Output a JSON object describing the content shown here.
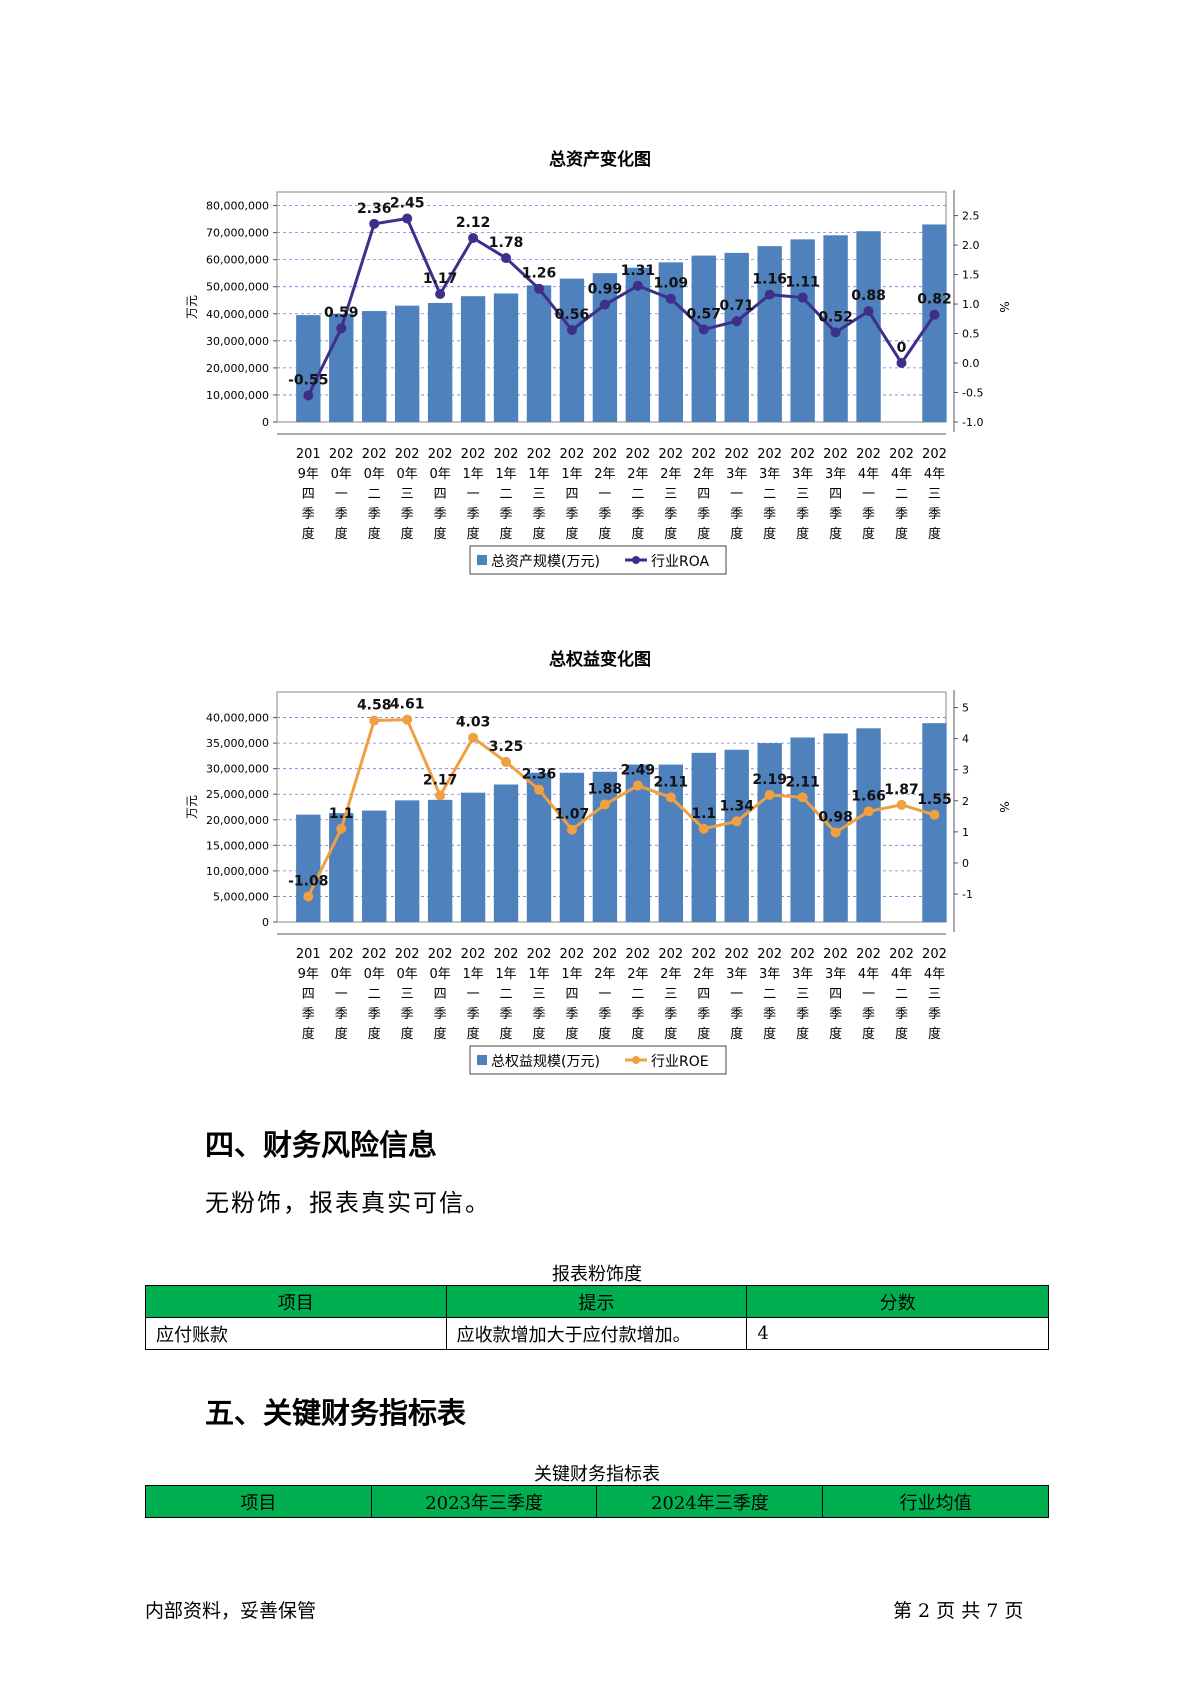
{
  "charts": {
    "assets": {
      "title": "总资产变化图",
      "y_left_label": "万元",
      "y_right_label": "%",
      "legend_bar": "总资产规模(万元)",
      "legend_line": "行业ROA",
      "line_color": "#3d2f8a",
      "bar_color": "#4f81bd",
      "left_ticks": [
        "0",
        "10,000,000",
        "20,000,000",
        "30,000,000",
        "40,000,000",
        "50,000,000",
        "60,000,000",
        "70,000,000",
        "80,000,000"
      ],
      "right_ticks": [
        "-1.0",
        "-0.5",
        "0.0",
        "0.5",
        "1.0",
        "1.5",
        "2.0",
        "2.5"
      ]
    },
    "equity": {
      "title": "总权益变化图",
      "y_left_label": "万元",
      "y_right_label": "%",
      "legend_bar": "总权益规模(万元)",
      "legend_line": "行业ROE",
      "line_color": "#f0a040",
      "bar_color": "#4f81bd",
      "left_ticks": [
        "0",
        "5,000,000",
        "10,000,000",
        "15,000,000",
        "20,000,000",
        "25,000,000",
        "30,000,000",
        "35,000,000",
        "40,000,000"
      ],
      "right_ticks": [
        "-1",
        "0",
        "1",
        "2",
        "3",
        "4",
        "5"
      ]
    }
  },
  "chart_data": [
    {
      "type": "bar",
      "title": "总资产变化图",
      "ylabel": "万元",
      "y2label": "%",
      "ylim": [
        0,
        85000000
      ],
      "y2lim": [
        -1.0,
        2.9
      ],
      "categories": [
        [
          "201",
          "9年",
          "四",
          "季",
          "度"
        ],
        [
          "202",
          "0年",
          "一",
          "季",
          "度"
        ],
        [
          "202",
          "0年",
          "二",
          "季",
          "度"
        ],
        [
          "202",
          "0年",
          "三",
          "季",
          "度"
        ],
        [
          "202",
          "0年",
          "四",
          "季",
          "度"
        ],
        [
          "202",
          "1年",
          "一",
          "季",
          "度"
        ],
        [
          "202",
          "1年",
          "二",
          "季",
          "度"
        ],
        [
          "202",
          "1年",
          "三",
          "季",
          "度"
        ],
        [
          "202",
          "1年",
          "四",
          "季",
          "度"
        ],
        [
          "202",
          "2年",
          "一",
          "季",
          "度"
        ],
        [
          "202",
          "2年",
          "二",
          "季",
          "度"
        ],
        [
          "202",
          "2年",
          "三",
          "季",
          "度"
        ],
        [
          "202",
          "2年",
          "四",
          "季",
          "度"
        ],
        [
          "202",
          "3年",
          "一",
          "季",
          "度"
        ],
        [
          "202",
          "3年",
          "二",
          "季",
          "度"
        ],
        [
          "202",
          "3年",
          "三",
          "季",
          "度"
        ],
        [
          "202",
          "3年",
          "四",
          "季",
          "度"
        ],
        [
          "202",
          "4年",
          "一",
          "季",
          "度"
        ],
        [
          "202",
          "4年",
          "二",
          "季",
          "度"
        ],
        [
          "202",
          "4年",
          "三",
          "季",
          "度"
        ]
      ],
      "series": [
        {
          "name": "总资产规模(万元)",
          "type": "bar",
          "values": [
            39500000,
            40000000,
            41000000,
            43000000,
            44000000,
            46500000,
            47500000,
            50500000,
            53000000,
            55000000,
            57000000,
            59000000,
            61500000,
            62500000,
            65000000,
            67500000,
            69000000,
            70500000,
            0,
            73000000
          ]
        },
        {
          "name": "行业ROA",
          "type": "line",
          "values": [
            -0.55,
            0.59,
            2.36,
            2.45,
            1.17,
            2.12,
            1.78,
            1.26,
            0.56,
            0.99,
            1.31,
            1.09,
            0.57,
            0.71,
            1.16,
            1.11,
            0.52,
            0.88,
            0,
            0.82
          ],
          "labels": [
            "-0.55",
            "0.59",
            "2.36",
            "2.45",
            "1.17",
            "2.12",
            "1.78",
            "1.26",
            "0.56",
            "0.99",
            "1.31",
            "1.09",
            "0.57",
            "0.71",
            "1.16",
            "1.11",
            "0.52",
            "0.88",
            "0",
            "0.82"
          ]
        }
      ]
    },
    {
      "type": "bar",
      "title": "总权益变化图",
      "ylabel": "万元",
      "y2label": "%",
      "ylim": [
        0,
        45000000
      ],
      "y2lim": [
        -1.9,
        5.5
      ],
      "categories": [
        [
          "201",
          "9年",
          "四",
          "季",
          "度"
        ],
        [
          "202",
          "0年",
          "一",
          "季",
          "度"
        ],
        [
          "202",
          "0年",
          "二",
          "季",
          "度"
        ],
        [
          "202",
          "0年",
          "三",
          "季",
          "度"
        ],
        [
          "202",
          "0年",
          "四",
          "季",
          "度"
        ],
        [
          "202",
          "1年",
          "一",
          "季",
          "度"
        ],
        [
          "202",
          "1年",
          "二",
          "季",
          "度"
        ],
        [
          "202",
          "1年",
          "三",
          "季",
          "度"
        ],
        [
          "202",
          "1年",
          "四",
          "季",
          "度"
        ],
        [
          "202",
          "2年",
          "一",
          "季",
          "度"
        ],
        [
          "202",
          "2年",
          "二",
          "季",
          "度"
        ],
        [
          "202",
          "2年",
          "三",
          "季",
          "度"
        ],
        [
          "202",
          "2年",
          "四",
          "季",
          "度"
        ],
        [
          "202",
          "3年",
          "一",
          "季",
          "度"
        ],
        [
          "202",
          "3年",
          "二",
          "季",
          "度"
        ],
        [
          "202",
          "3年",
          "三",
          "季",
          "度"
        ],
        [
          "202",
          "3年",
          "四",
          "季",
          "度"
        ],
        [
          "202",
          "4年",
          "一",
          "季",
          "度"
        ],
        [
          "202",
          "4年",
          "二",
          "季",
          "度"
        ],
        [
          "202",
          "4年",
          "三",
          "季",
          "度"
        ]
      ],
      "series": [
        {
          "name": "总权益规模(万元)",
          "type": "bar",
          "values": [
            21000000,
            21300000,
            21800000,
            23800000,
            23900000,
            25300000,
            26900000,
            29200000,
            29200000,
            29400000,
            30800000,
            30800000,
            33100000,
            33700000,
            35000000,
            36100000,
            36900000,
            37900000,
            0,
            38900000
          ]
        },
        {
          "name": "行业ROE",
          "type": "line",
          "values": [
            -1.08,
            1.1,
            4.58,
            4.61,
            2.17,
            4.03,
            3.25,
            2.36,
            1.07,
            1.88,
            2.49,
            2.11,
            1.1,
            1.34,
            2.19,
            2.11,
            0.98,
            1.66,
            1.87,
            1.55
          ],
          "labels": [
            "-1.08",
            "1.1",
            "4.58",
            "4.61",
            "2.17",
            "4.03",
            "3.25",
            "2.36",
            "1.07",
            "1.88",
            "2.49",
            "2.11",
            "1.1",
            "1.34",
            "2.19",
            "2.11",
            "0.98",
            "1.66",
            "1.87",
            "1.55"
          ]
        }
      ]
    }
  ],
  "section4": {
    "heading": "四、财务风险信息",
    "paragraph": "无粉饰，报表真实可信。",
    "table_caption": "报表粉饰度",
    "headers": [
      "项目",
      "提示",
      "分数"
    ],
    "rows": [
      [
        "应付账款",
        "应收款增加大于应付款增加。",
        "4"
      ]
    ]
  },
  "section5": {
    "heading": "五、关键财务指标表",
    "table_caption": "关键财务指标表",
    "headers": [
      "项目",
      "2023年三季度",
      "2024年三季度",
      "行业均值"
    ]
  },
  "footer": {
    "left": "内部资料，妥善保管",
    "right": "第 2 页   共 7 页"
  }
}
